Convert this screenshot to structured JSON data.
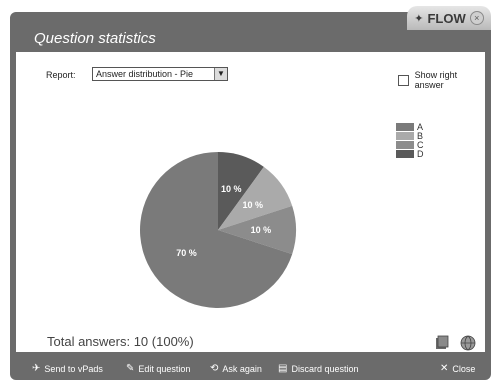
{
  "brand": {
    "logo_text": "FLOW",
    "close_symbol": "×"
  },
  "dialog": {
    "title": "Question statistics"
  },
  "report": {
    "label": "Report:",
    "selected": "Answer distribution - Pie"
  },
  "show_right_answer": {
    "label": "Show right answer",
    "checked": false
  },
  "legend": [
    {
      "label": "A",
      "color": "#7a7a7a"
    },
    {
      "label": "B",
      "color": "#aaaaaa"
    },
    {
      "label": "C",
      "color": "#8c8c8c"
    },
    {
      "label": "D",
      "color": "#5a5a5a"
    }
  ],
  "chart_data": {
    "type": "pie",
    "slices": [
      {
        "label": "A",
        "value": 70,
        "display": "70 %",
        "color": "#7a7a7a"
      },
      {
        "label": "B",
        "value": 10,
        "display": "10 %",
        "color": "#aaaaaa"
      },
      {
        "label": "C",
        "value": 10,
        "display": "10 %",
        "color": "#8c8c8c"
      },
      {
        "label": "D",
        "value": 10,
        "display": "10 %",
        "color": "#5a5a5a"
      }
    ],
    "legend": [
      "A",
      "B",
      "C",
      "D"
    ],
    "legend_position": "right"
  },
  "total_answers": "Total answers: 10 (100%)",
  "bottom_actions": {
    "send": "Send to vPads",
    "edit": "Edit question",
    "ask": "Ask again",
    "discard": "Discard question",
    "close": "Close"
  }
}
